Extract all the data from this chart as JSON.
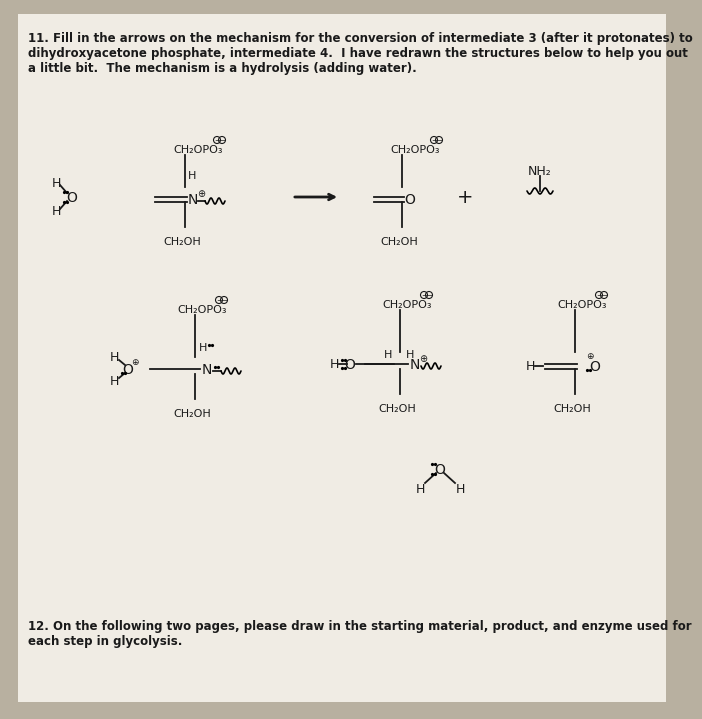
{
  "bg_color": "#b8b0a0",
  "paper_color": "#f0ece4",
  "title_line1": "11. Fill in the arrows on the mechanism for the conversion of intermediate 3 (after it protonates) to",
  "title_line2": "dihydroxyacetone phosphate, intermediate 4.  I have redrawn the structures below to help you out",
  "title_line3": "a little bit.  The mechanism is a hydrolysis (adding water).",
  "footer_line1": "12. On the following two pages, please draw in the starting material, product, and enzyme used for",
  "footer_line2": "each step in glycolysis.",
  "text_color": "#1a1a1a",
  "fs_title": 8.5,
  "fs_chem": 8.0,
  "fs_small": 7.0
}
